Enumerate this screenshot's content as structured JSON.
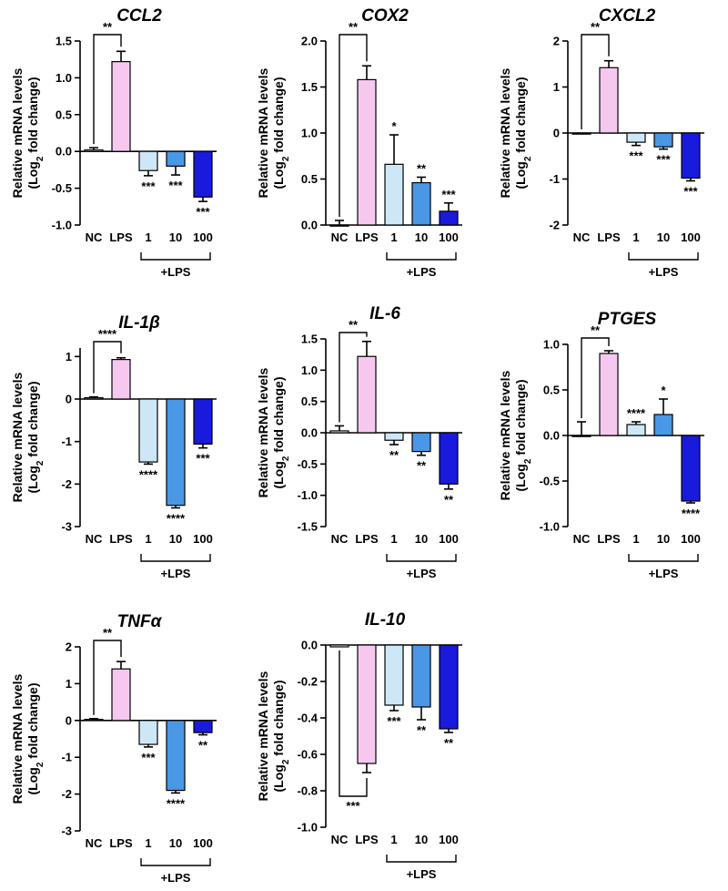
{
  "ylabel": "Relative mRNA levels",
  "ylabel_sub": "(Log2 fold change)",
  "categories": [
    "NC",
    "LPS",
    "1",
    "10",
    "100"
  ],
  "group_label": "+LPS",
  "colors": {
    "NC": "#ffffff",
    "LPS": "#f6c8f0",
    "1": "#cde7f6",
    "10": "#4a97e6",
    "100": "#1a1adc",
    "stroke": "#000000"
  },
  "chart_data": [
    {
      "type": "bar",
      "title": "CCL2",
      "categories": [
        "NC",
        "LPS",
        "1",
        "10",
        "100"
      ],
      "values": [
        0.02,
        1.22,
        -0.26,
        -0.2,
        -0.62
      ],
      "errors": [
        0.03,
        0.14,
        0.07,
        0.12,
        0.06
      ],
      "ylim": [
        -1.0,
        1.5
      ],
      "yticks": [
        -1.0,
        -0.5,
        0.0,
        0.5,
        1.0,
        1.5
      ],
      "tick_format": "0.0",
      "sig_top": "**",
      "sig_bars": [
        "",
        "",
        "***",
        "***",
        "***"
      ],
      "sig_bracket": "top"
    },
    {
      "type": "bar",
      "title": "COX2",
      "categories": [
        "NC",
        "LPS",
        "1",
        "10",
        "100"
      ],
      "values": [
        0.0,
        1.58,
        0.66,
        0.46,
        0.15
      ],
      "errors": [
        0.05,
        0.15,
        0.32,
        0.06,
        0.09
      ],
      "ylim": [
        0.0,
        2.0
      ],
      "yticks": [
        0.0,
        0.5,
        1.0,
        1.5,
        2.0
      ],
      "tick_format": "0.0",
      "sig_top": "**",
      "sig_bars": [
        "",
        "",
        "*",
        "**",
        "***"
      ],
      "sig_bracket": "top"
    },
    {
      "type": "bar",
      "title": "CXCL2",
      "categories": [
        "NC",
        "LPS",
        "1",
        "10",
        "100"
      ],
      "values": [
        0.0,
        1.42,
        -0.2,
        -0.3,
        -0.98
      ],
      "errors": [
        0.0,
        0.15,
        0.07,
        0.05,
        0.06
      ],
      "ylim": [
        -2,
        2
      ],
      "yticks": [
        -2,
        -1,
        0,
        1,
        2
      ],
      "tick_format": "0",
      "sig_top": "**",
      "sig_bars": [
        "",
        "",
        "***",
        "***",
        "***"
      ],
      "sig_bracket": "top"
    },
    {
      "type": "bar",
      "title": "IL-1β",
      "categories": [
        "NC",
        "LPS",
        "1",
        "10",
        "100"
      ],
      "values": [
        0.03,
        0.93,
        -1.48,
        -2.5,
        -1.06
      ],
      "errors": [
        0.02,
        0.04,
        0.05,
        0.06,
        0.09
      ],
      "ylim": [
        -3,
        1.2
      ],
      "yticks": [
        -3,
        -2,
        -1,
        0,
        1
      ],
      "tick_format": "0",
      "sig_top": "****",
      "sig_bars": [
        "",
        "",
        "****",
        "****",
        "***"
      ],
      "sig_bracket": "top"
    },
    {
      "type": "bar",
      "title": "IL-6",
      "categories": [
        "NC",
        "LPS",
        "1",
        "10",
        "100"
      ],
      "values": [
        0.03,
        1.22,
        -0.12,
        -0.3,
        -0.82
      ],
      "errors": [
        0.08,
        0.24,
        0.07,
        0.06,
        0.08
      ],
      "ylim": [
        -1.5,
        1.5
      ],
      "yticks": [
        -1.5,
        -1.0,
        -0.5,
        0.0,
        0.5,
        1.0,
        1.5
      ],
      "tick_format": "0.0",
      "sig_top": "**",
      "sig_bars": [
        "",
        "",
        "**",
        "**",
        "**"
      ],
      "sig_bracket": "top"
    },
    {
      "type": "bar",
      "title": "PTGES",
      "categories": [
        "NC",
        "LPS",
        "1",
        "10",
        "100"
      ],
      "values": [
        0.0,
        0.9,
        0.12,
        0.23,
        -0.72
      ],
      "errors": [
        0.15,
        0.03,
        0.03,
        0.17,
        0.02
      ],
      "ylim": [
        -1.0,
        1.0
      ],
      "yticks": [
        -1.0,
        -0.5,
        0.0,
        0.5,
        1.0
      ],
      "tick_format": "0.0",
      "sig_top": "**",
      "sig_bars": [
        "",
        "",
        "****",
        "*",
        "****"
      ],
      "sig_bracket": "top"
    },
    {
      "type": "bar",
      "title": "TNFα",
      "categories": [
        "NC",
        "LPS",
        "1",
        "10",
        "100"
      ],
      "values": [
        0.03,
        1.4,
        -0.65,
        -1.9,
        -0.33
      ],
      "errors": [
        0.02,
        0.2,
        0.07,
        0.07,
        0.06
      ],
      "ylim": [
        -3,
        2
      ],
      "yticks": [
        -3,
        -2,
        -1,
        0,
        1,
        2
      ],
      "tick_format": "0",
      "sig_top": "**",
      "sig_bars": [
        "",
        "",
        "***",
        "****",
        "**"
      ],
      "sig_bracket": "top"
    },
    {
      "type": "bar",
      "title": "IL-10",
      "categories": [
        "NC",
        "LPS",
        "1",
        "10",
        "100"
      ],
      "values": [
        -0.01,
        -0.65,
        -0.33,
        -0.34,
        -0.46
      ],
      "errors": [
        0.0,
        0.05,
        0.03,
        0.07,
        0.02
      ],
      "ylim": [
        -1.0,
        0.0
      ],
      "yticks": [
        -1.0,
        -0.8,
        -0.6,
        -0.4,
        -0.2,
        0.0
      ],
      "tick_format": "0.0",
      "sig_top": "***",
      "sig_bars": [
        "",
        "",
        "***",
        "**",
        "**"
      ],
      "sig_bracket": "bottom"
    }
  ]
}
